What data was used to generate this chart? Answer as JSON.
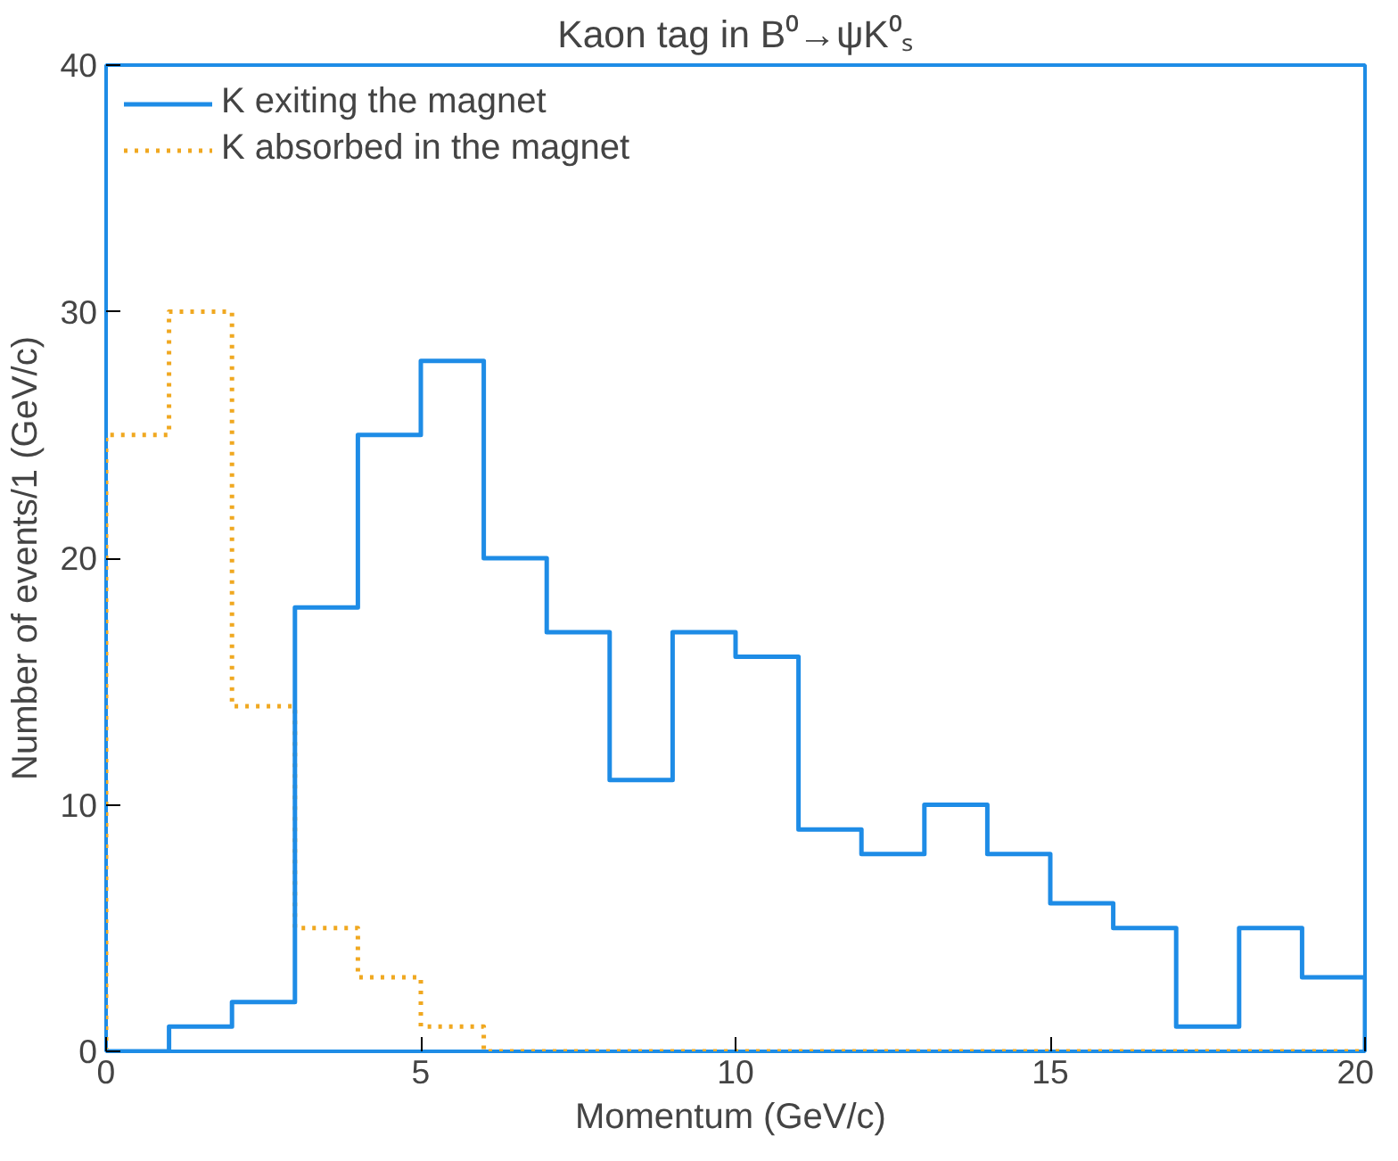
{
  "chart_data": {
    "type": "histogram",
    "title": "Kaon tag in B⁰→ψK⁰ₛ",
    "xlabel": "Momentum  (GeV/c)",
    "ylabel": "Number of events/1 (GeV/c)",
    "bins": [
      0,
      1,
      2,
      3,
      4,
      5,
      6,
      7,
      8,
      9,
      10,
      11,
      12,
      13,
      14,
      15,
      16,
      17,
      18,
      19,
      20
    ],
    "series": [
      {
        "name": "K exiting the magnet",
        "color": "#1e8ce6",
        "line_style": "solid",
        "values": [
          0,
          1,
          2,
          18,
          25,
          28,
          20,
          17,
          11,
          17,
          16,
          9,
          8,
          10,
          8,
          6,
          5,
          1,
          5,
          3
        ]
      },
      {
        "name": "K absorbed in the magnet",
        "color": "#f0a820",
        "line_style": "dotted",
        "values": [
          25,
          30,
          14,
          5,
          3,
          1,
          0,
          0,
          0,
          0,
          0,
          0,
          0,
          0,
          0,
          0,
          0,
          0,
          0,
          0
        ]
      }
    ],
    "xlim": [
      0,
      20
    ],
    "ylim": [
      0,
      40
    ],
    "xticks": [
      0,
      5,
      10,
      15,
      20
    ],
    "yticks": [
      0,
      10,
      20,
      30,
      40
    ],
    "grid": false,
    "legend": "top left"
  }
}
